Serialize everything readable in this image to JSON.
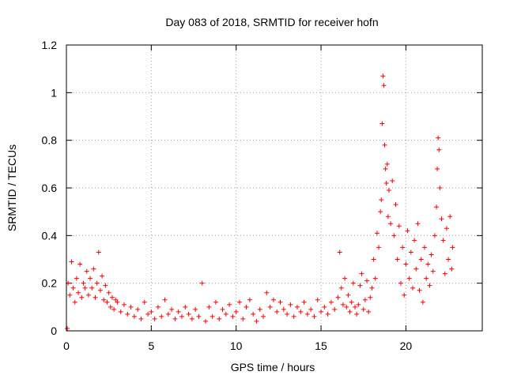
{
  "chart_data": {
    "type": "scatter",
    "title": "Day 083 of 2018, SRMTID for receiver hofn",
    "xlabel": "GPS time / hours",
    "ylabel": "SRMTID / TECUs",
    "xlim": [
      0,
      24.5
    ],
    "ylim": [
      0,
      1.2
    ],
    "xticks": [
      0,
      5,
      10,
      15,
      20
    ],
    "xtick_labels": [
      "0",
      "5",
      "10",
      "15",
      "20"
    ],
    "yticks": [
      0,
      0.2,
      0.4,
      0.6,
      0.8,
      1,
      1.2
    ],
    "ytick_labels": [
      "0",
      "0.2",
      "0.4",
      "0.6",
      "0.8",
      "1",
      "1.2"
    ],
    "grid": true,
    "marker": "+",
    "series": [
      {
        "name": "SRMTID",
        "color": "#ff0000",
        "x": [
          0.05,
          0.1,
          0.2,
          0.3,
          0.4,
          0.5,
          0.6,
          0.7,
          0.8,
          0.9,
          1.0,
          1.1,
          1.2,
          1.3,
          1.4,
          1.5,
          1.6,
          1.7,
          1.8,
          1.9,
          2.0,
          2.1,
          2.2,
          2.3,
          2.4,
          2.5,
          2.6,
          2.7,
          2.8,
          2.9,
          3.0,
          3.2,
          3.4,
          3.6,
          3.8,
          4.0,
          4.2,
          4.4,
          4.6,
          4.8,
          5.0,
          5.2,
          5.4,
          5.6,
          5.8,
          6.0,
          6.2,
          6.4,
          6.6,
          6.8,
          7.0,
          7.2,
          7.4,
          7.6,
          7.8,
          8.0,
          8.2,
          8.4,
          8.6,
          8.8,
          9.0,
          9.2,
          9.4,
          9.6,
          9.8,
          10.0,
          10.2,
          10.4,
          10.6,
          10.8,
          11.0,
          11.2,
          11.4,
          11.6,
          11.8,
          12.0,
          12.2,
          12.4,
          12.6,
          12.8,
          13.0,
          13.2,
          13.4,
          13.6,
          13.8,
          14.0,
          14.2,
          14.4,
          14.6,
          14.8,
          15.0,
          15.2,
          15.4,
          15.6,
          15.8,
          16.0,
          16.1,
          16.2,
          16.3,
          16.4,
          16.5,
          16.6,
          16.7,
          16.8,
          16.9,
          17.0,
          17.1,
          17.2,
          17.3,
          17.4,
          17.5,
          17.6,
          17.7,
          17.8,
          17.9,
          18.0,
          18.1,
          18.2,
          18.3,
          18.4,
          18.5,
          18.55,
          18.6,
          18.65,
          18.7,
          18.75,
          18.8,
          18.85,
          18.9,
          18.95,
          19.0,
          19.1,
          19.2,
          19.3,
          19.4,
          19.5,
          19.6,
          19.7,
          19.8,
          19.9,
          20.0,
          20.1,
          20.2,
          20.3,
          20.4,
          20.5,
          20.6,
          20.7,
          20.8,
          20.9,
          21.0,
          21.1,
          21.2,
          21.3,
          21.4,
          21.5,
          21.6,
          21.7,
          21.8,
          21.85,
          21.9,
          21.95,
          22.0,
          22.1,
          22.2,
          22.3,
          22.4,
          22.5,
          22.6,
          22.7,
          22.75
        ],
        "y": [
          0.01,
          0.2,
          0.15,
          0.29,
          0.18,
          0.12,
          0.22,
          0.16,
          0.28,
          0.14,
          0.2,
          0.18,
          0.25,
          0.15,
          0.22,
          0.18,
          0.26,
          0.14,
          0.2,
          0.33,
          0.17,
          0.23,
          0.13,
          0.19,
          0.12,
          0.16,
          0.1,
          0.14,
          0.09,
          0.13,
          0.12,
          0.08,
          0.11,
          0.07,
          0.1,
          0.06,
          0.09,
          0.05,
          0.12,
          0.07,
          0.08,
          0.05,
          0.1,
          0.06,
          0.13,
          0.07,
          0.09,
          0.05,
          0.08,
          0.06,
          0.1,
          0.07,
          0.05,
          0.09,
          0.06,
          0.2,
          0.04,
          0.1,
          0.06,
          0.12,
          0.05,
          0.09,
          0.07,
          0.11,
          0.06,
          0.08,
          0.12,
          0.05,
          0.1,
          0.13,
          0.07,
          0.04,
          0.09,
          0.06,
          0.16,
          0.1,
          0.13,
          0.08,
          0.12,
          0.09,
          0.07,
          0.11,
          0.06,
          0.1,
          0.08,
          0.12,
          0.07,
          0.09,
          0.06,
          0.13,
          0.08,
          0.1,
          0.07,
          0.12,
          0.09,
          0.14,
          0.33,
          0.18,
          0.11,
          0.22,
          0.1,
          0.15,
          0.08,
          0.12,
          0.2,
          0.1,
          0.07,
          0.11,
          0.19,
          0.24,
          0.09,
          0.13,
          0.21,
          0.08,
          0.14,
          0.18,
          0.3,
          0.22,
          0.41,
          0.35,
          0.5,
          0.55,
          0.87,
          1.07,
          1.03,
          0.78,
          0.68,
          0.62,
          0.7,
          0.48,
          0.59,
          0.45,
          0.63,
          0.4,
          0.53,
          0.3,
          0.44,
          0.2,
          0.35,
          0.15,
          0.28,
          0.42,
          0.22,
          0.33,
          0.18,
          0.38,
          0.26,
          0.45,
          0.17,
          0.3,
          0.12,
          0.35,
          0.22,
          0.28,
          0.19,
          0.32,
          0.25,
          0.4,
          0.52,
          0.68,
          0.81,
          0.76,
          0.6,
          0.47,
          0.38,
          0.24,
          0.43,
          0.3,
          0.48,
          0.26,
          0.35
        ]
      }
    ]
  }
}
